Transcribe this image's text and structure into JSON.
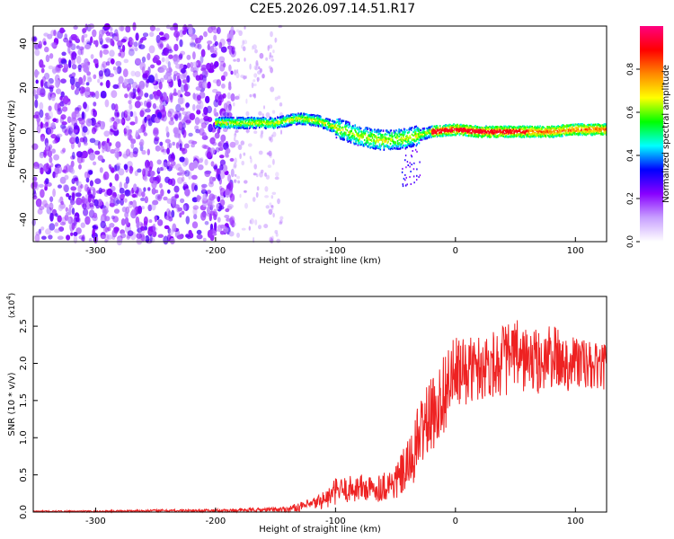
{
  "title": "C2E5.2026.097.14.51.R17",
  "chart_data": [
    {
      "type": "heatmap",
      "xlabel": "Height of straight line (km)",
      "ylabel": "Frequency (Hz)",
      "xlim": [
        -352,
        126
      ],
      "ylim": [
        -50,
        48
      ],
      "xticks": [
        -300,
        -200,
        -100,
        0,
        100
      ],
      "yticks": [
        -40,
        -20,
        0,
        20,
        40
      ],
      "colorbar": {
        "label": "Normalized spectral amplitude",
        "range": [
          0,
          1
        ],
        "ticks": [
          "0.0",
          "0.2",
          "0.4",
          "0.6",
          "0.8"
        ],
        "tick_values": [
          0,
          0.2,
          0.4,
          0.6,
          0.8
        ],
        "colors": [
          "#ffffff",
          "#c8a0ff",
          "#8800ff",
          "#0000ff",
          "#00ffff",
          "#00ff00",
          "#ffff00",
          "#ff8800",
          "#ff0000",
          "#ff0080"
        ]
      },
      "noise_region_x": [
        -352,
        -185
      ],
      "sparse_noise_x": [
        -185,
        -145
      ],
      "signal_start_x": -200,
      "signal_ridge": [
        {
          "x": -200,
          "y": 4
        },
        {
          "x": -180,
          "y": 4
        },
        {
          "x": -150,
          "y": 4
        },
        {
          "x": -130,
          "y": 6
        },
        {
          "x": -115,
          "y": 5
        },
        {
          "x": -100,
          "y": 2
        },
        {
          "x": -80,
          "y": -2
        },
        {
          "x": -60,
          "y": -4
        },
        {
          "x": -40,
          "y": -3
        },
        {
          "x": -20,
          "y": 0
        },
        {
          "x": 0,
          "y": 1
        },
        {
          "x": 20,
          "y": 0
        },
        {
          "x": 40,
          "y": 0
        },
        {
          "x": 60,
          "y": 0
        },
        {
          "x": 80,
          "y": 0
        },
        {
          "x": 100,
          "y": 1
        },
        {
          "x": 126,
          "y": 1
        }
      ]
    },
    {
      "type": "line",
      "xlabel": "Height of straight line (km)",
      "ylabel": "SNR (10 * v/v)",
      "yscale_label": "(x10",
      "yscale_exp": "4",
      "yscale_close": ")",
      "xlim": [
        -352,
        126
      ],
      "ylim": [
        0,
        2.9
      ],
      "xticks": [
        -300,
        -200,
        -100,
        0,
        100
      ],
      "yticks": [
        "0.0",
        "0.5",
        "1.0",
        "1.5",
        "2.0",
        "2.5"
      ],
      "ytick_values": [
        0,
        0.5,
        1.0,
        1.5,
        2.0,
        2.5
      ],
      "series": [
        {
          "color": "#ee2222",
          "x": [
            -352,
            -300,
            -250,
            -200,
            -160,
            -140,
            -120,
            -105,
            -100,
            -90,
            -80,
            -70,
            -60,
            -50,
            -40,
            -35,
            -30,
            -25,
            -20,
            -15,
            -10,
            -5,
            0,
            10,
            20,
            30,
            40,
            50,
            60,
            70,
            80,
            90,
            100,
            110,
            126
          ],
          "y": [
            0.01,
            0.01,
            0.02,
            0.02,
            0.03,
            0.04,
            0.1,
            0.2,
            0.28,
            0.3,
            0.33,
            0.3,
            0.35,
            0.4,
            0.6,
            0.75,
            1.05,
            1.2,
            1.3,
            1.4,
            1.6,
            1.75,
            1.85,
            1.9,
            1.95,
            2.0,
            2.05,
            2.1,
            2.05,
            2.0,
            2.1,
            2.0,
            2.05,
            1.95,
            1.95
          ],
          "noise_amp": [
            0.01,
            0.01,
            0.015,
            0.02,
            0.03,
            0.04,
            0.08,
            0.15,
            0.18,
            0.18,
            0.2,
            0.18,
            0.2,
            0.25,
            0.35,
            0.4,
            0.5,
            0.5,
            0.5,
            0.5,
            0.55,
            0.55,
            0.5,
            0.45,
            0.45,
            0.45,
            0.5,
            0.5,
            0.45,
            0.45,
            0.45,
            0.4,
            0.4,
            0.35,
            0.3
          ]
        }
      ]
    }
  ]
}
